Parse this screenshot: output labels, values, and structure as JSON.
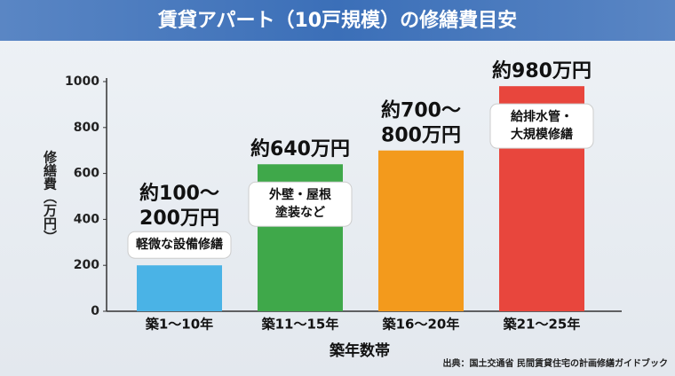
{
  "chart_data": {
    "type": "bar",
    "title": "賃貸アパート（10戸規模）の修繕費目安",
    "y_label": "修繕費（万円）",
    "x_label": "築年数帯",
    "source": "出典：国土交通省 民間賃貸住宅の計画修繕ガイドブック",
    "categories": [
      "築1〜10年",
      "築11〜15年",
      "築16〜20年",
      "築21〜25年"
    ],
    "values": [
      200,
      640,
      700,
      980
    ],
    "colors": [
      "#4ab3e6",
      "#3fa84a",
      "#f39a1c",
      "#e8463d"
    ],
    "annotations": [
      {
        "lines": [
          "約100〜",
          "200万円"
        ],
        "note": [
          "軽微な設備修繕"
        ]
      },
      {
        "lines": [
          "約640万円"
        ],
        "note": [
          "外壁・屋根",
          "塗装など"
        ]
      },
      {
        "lines": [
          "約700〜",
          "800万円"
        ],
        "note": []
      },
      {
        "lines": [
          "約980万円"
        ],
        "note": [
          "給排水管・",
          "大規模修繕"
        ]
      }
    ],
    "ylim": [
      0,
      1000
    ],
    "yticks": [
      0,
      200,
      400,
      600,
      800,
      1000
    ],
    "grid": false
  }
}
